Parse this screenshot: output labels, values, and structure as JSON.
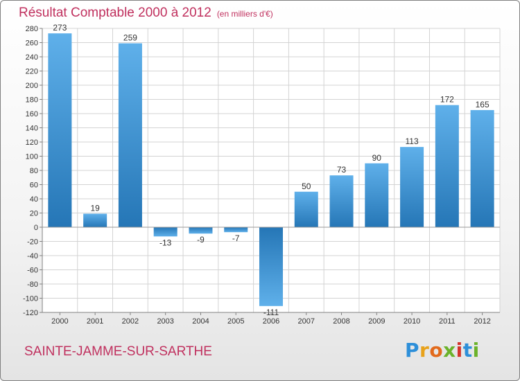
{
  "header": {
    "title": "Résultat Comptable 2000 à 2012",
    "subtitle": "(en milliers d'€)"
  },
  "footer": {
    "commune": "SAINTE-JAMME-SUR-SARTHE",
    "brand_letters": [
      "P",
      "r",
      "o",
      "x",
      "i",
      "t",
      "i"
    ],
    "brand_colors": [
      "#2d8fd9",
      "#e8a21b",
      "#e26a1c",
      "#6bb22a",
      "#d4352c",
      "#2d8fd9",
      "#6bb22a"
    ]
  },
  "colors": {
    "title": "#c0305e",
    "bar_light": "#5fb0ea",
    "bar_dark": "#2576b6",
    "grid": "#d3d3d3",
    "axis": "#808080"
  },
  "chart_data": {
    "type": "bar",
    "title": "Résultat Comptable 2000 à 2012",
    "subtitle": "(en milliers d'€)",
    "xlabel": "",
    "ylabel": "",
    "categories": [
      "2000",
      "2001",
      "2002",
      "2003",
      "2004",
      "2005",
      "2006",
      "2007",
      "2008",
      "2009",
      "2010",
      "2011",
      "2012"
    ],
    "values": [
      273,
      19,
      259,
      -13,
      -9,
      -7,
      -111,
      50,
      73,
      90,
      113,
      172,
      165
    ],
    "labels": [
      "273",
      "19",
      "259",
      "-13",
      "-9",
      "-7",
      "-111",
      "50",
      "73",
      "90",
      "113",
      "172",
      "165"
    ],
    "ylim": [
      -120,
      280
    ],
    "yticks": [
      280,
      260,
      240,
      220,
      200,
      180,
      160,
      140,
      120,
      100,
      80,
      60,
      40,
      20,
      0,
      -20,
      -40,
      -60,
      -80,
      -100,
      -120
    ],
    "grid": true
  }
}
